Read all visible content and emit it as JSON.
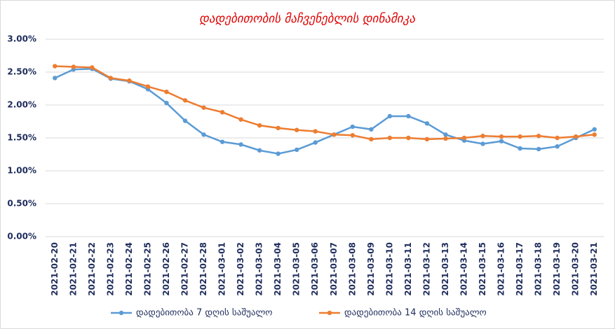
{
  "chart_data": {
    "type": "line",
    "title": "დადებითობის მაჩვენებლის დინამიკა",
    "categories": [
      "2021-02-20",
      "2021-02-21",
      "2021-02-22",
      "2021-02-23",
      "2021-02-24",
      "2021-02-25",
      "2021-02-26",
      "2021-02-27",
      "2021-02-28",
      "2021-03-01",
      "2021-03-02",
      "2021-03-03",
      "2021-03-04",
      "2021-03-05",
      "2021-03-06",
      "2021-03-07",
      "2021-03-08",
      "2021-03-09",
      "2021-03-10",
      "2021-03-11",
      "2021-03-12",
      "2021-03-13",
      "2021-03-14",
      "2021-03-15",
      "2021-03-16",
      "2021-03-17",
      "2021-03-18",
      "2021-03-19",
      "2021-03-20",
      "2021-03-21"
    ],
    "series": [
      {
        "name": "დადებითობა 7 დღის საშუალო",
        "color": "#5b9bd5",
        "values": [
          2.41,
          2.54,
          2.55,
          2.4,
          2.36,
          2.24,
          2.03,
          1.76,
          1.55,
          1.44,
          1.4,
          1.31,
          1.26,
          1.32,
          1.43,
          1.55,
          1.67,
          1.63,
          1.83,
          1.83,
          1.72,
          1.55,
          1.46,
          1.41,
          1.45,
          1.34,
          1.33,
          1.37,
          1.5,
          1.63
        ]
      },
      {
        "name": "დადებითობა 14 დღის საშუალო",
        "color": "#ed7d31",
        "values": [
          2.59,
          2.58,
          2.57,
          2.41,
          2.37,
          2.28,
          2.2,
          2.07,
          1.96,
          1.89,
          1.78,
          1.69,
          1.65,
          1.62,
          1.6,
          1.55,
          1.54,
          1.48,
          1.5,
          1.5,
          1.48,
          1.49,
          1.5,
          1.53,
          1.52,
          1.52,
          1.53,
          1.5,
          1.52,
          1.55
        ]
      }
    ],
    "ylim": [
      0,
      3
    ],
    "yticks": [
      {
        "value": 0,
        "label": "0.00%"
      },
      {
        "value": 0.5,
        "label": "0.50%"
      },
      {
        "value": 1,
        "label": "1.00%"
      },
      {
        "value": 1.5,
        "label": "1.50%"
      },
      {
        "value": 2,
        "label": "2.00%"
      },
      {
        "value": 2.5,
        "label": "2.50%"
      },
      {
        "value": 3,
        "label": "3.00%"
      }
    ],
    "grid": true,
    "legend": "bottom"
  }
}
